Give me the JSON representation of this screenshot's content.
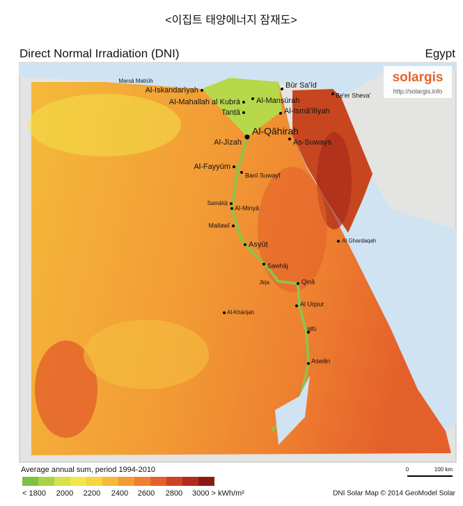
{
  "header": {
    "title": "<이집트 태양에너지 잠재도>"
  },
  "map": {
    "title": "Direct Normal Irradiation (DNI)",
    "country": "Egypt",
    "logo": {
      "brand": "solargis",
      "url": "http://solargis.info"
    },
    "cities": [
      "Marsā Matrūh",
      "Al-Iskandarīyah",
      "Al-Mahallah al Kubrá",
      "Tanṭā",
      "Al-Manṣūrah",
      "Būr Sa'īd",
      "Be'er Sheva'",
      "Al-Ismā'īlīyah",
      "Al-Qāhirah",
      "Al-Jīzah",
      "As-Suways",
      "Al-Fayyūm",
      "Banī Suwayf",
      "Samālūṭ",
      "Al-Minyā",
      "Mallawī",
      "Asyūṭ",
      "Sawhāj",
      "Jirja",
      "Qinā",
      "Al Ghardaqah",
      "Al Uqṣur",
      "Al-Khārijah",
      "Idfū",
      "Aswān"
    ],
    "legend": {
      "title": "Average annual sum, period 1994-2010",
      "colors": [
        "#7dc242",
        "#a8d24a",
        "#d8e04a",
        "#f2e64a",
        "#f7d53c",
        "#f5b93a",
        "#f29c35",
        "#ee8030",
        "#e4602a",
        "#cf4323",
        "#b12c1c",
        "#8c1a14"
      ],
      "labels": [
        "< 1800",
        "2000",
        "2200",
        "2400",
        "2600",
        "2800",
        "3000 > kWh/m²"
      ]
    },
    "scale": {
      "labels": [
        "0",
        "100 km"
      ]
    },
    "credit": "DNI Solar Map © 2014 GeoModel Solar"
  }
}
